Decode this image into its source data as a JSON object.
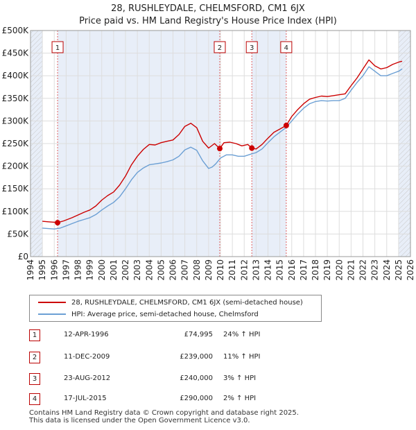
{
  "header": {
    "title_line1": "28, RUSHLEYDALE, CHELMSFORD, CM1 6JX",
    "title_line2": "Price paid vs. HM Land Registry's House Price Index (HPI)"
  },
  "chart_data": {
    "type": "line",
    "title": "28, RUSHLEYDALE, CHELMSFORD, CM1 6JX — Price paid vs. HM Land Registry's House Price Index (HPI)",
    "xlabel": "",
    "ylabel": "",
    "xlim": [
      1994,
      2026
    ],
    "ylim": [
      0,
      500000
    ],
    "x_ticks": [
      1994,
      1995,
      1996,
      1997,
      1998,
      1999,
      2000,
      2001,
      2002,
      2003,
      2004,
      2005,
      2006,
      2007,
      2008,
      2009,
      2010,
      2011,
      2012,
      2013,
      2014,
      2015,
      2016,
      2017,
      2018,
      2019,
      2020,
      2021,
      2022,
      2023,
      2024,
      2025,
      2026
    ],
    "y_ticks": [
      0,
      50000,
      100000,
      150000,
      200000,
      250000,
      300000,
      350000,
      400000,
      450000,
      500000
    ],
    "y_tick_labels": [
      "£0",
      "£50K",
      "£100K",
      "£150K",
      "£200K",
      "£250K",
      "£300K",
      "£350K",
      "£400K",
      "£450K",
      "£500K"
    ],
    "shaded_regions": [
      [
        1994.0,
        1995.0
      ],
      [
        1996.28,
        2009.94
      ],
      [
        2012.64,
        2015.54
      ],
      [
        2025.0,
        2026.0
      ]
    ],
    "hatched_regions": [
      [
        1994.0,
        1995.0
      ],
      [
        2025.0,
        2026.0
      ]
    ],
    "series": [
      {
        "name": "28, RUSHLEYDALE, CHELMSFORD, CM1 6JX (semi-detached house)",
        "color": "#cc0000",
        "x": [
          1995.0,
          1995.5,
          1996.0,
          1996.28,
          1996.8,
          1997.5,
          1998.0,
          1998.5,
          1999.0,
          1999.5,
          2000.0,
          2000.5,
          2001.0,
          2001.5,
          2002.0,
          2002.5,
          2003.0,
          2003.5,
          2004.0,
          2004.5,
          2005.0,
          2005.5,
          2006.0,
          2006.5,
          2007.0,
          2007.5,
          2008.0,
          2008.5,
          2009.0,
          2009.5,
          2009.94,
          2010.3,
          2010.8,
          2011.3,
          2011.8,
          2012.3,
          2012.64,
          2013.0,
          2013.5,
          2014.0,
          2014.5,
          2015.0,
          2015.54,
          2016.0,
          2016.5,
          2017.0,
          2017.5,
          2018.0,
          2018.5,
          2019.0,
          2019.5,
          2020.0,
          2020.5,
          2021.0,
          2021.5,
          2022.0,
          2022.5,
          2023.0,
          2023.5,
          2024.0,
          2024.5,
          2025.0,
          2025.3
        ],
        "y": [
          78000,
          77000,
          76000,
          74995,
          79000,
          86000,
          92000,
          98000,
          103000,
          112000,
          125000,
          135000,
          143000,
          158000,
          178000,
          203000,
          222000,
          237000,
          248000,
          247000,
          252000,
          255000,
          258000,
          270000,
          288000,
          295000,
          285000,
          255000,
          240000,
          250000,
          239000,
          252000,
          253000,
          250000,
          245000,
          248000,
          240000,
          238000,
          248000,
          262000,
          275000,
          282000,
          290000,
          310000,
          325000,
          338000,
          348000,
          352000,
          355000,
          354000,
          356000,
          358000,
          360000,
          378000,
          395000,
          415000,
          435000,
          422000,
          415000,
          418000,
          425000,
          430000,
          432000
        ]
      },
      {
        "name": "HPI: Average price, semi-detached house, Chelmsford",
        "color": "#6b9fd4",
        "x": [
          1995.0,
          1995.5,
          1996.0,
          1996.5,
          1997.0,
          1997.5,
          1998.0,
          1998.5,
          1999.0,
          1999.5,
          2000.0,
          2000.5,
          2001.0,
          2001.5,
          2002.0,
          2002.5,
          2003.0,
          2003.5,
          2004.0,
          2004.5,
          2005.0,
          2005.5,
          2006.0,
          2006.5,
          2007.0,
          2007.5,
          2008.0,
          2008.5,
          2009.0,
          2009.3,
          2009.6,
          2010.0,
          2010.5,
          2011.0,
          2011.5,
          2012.0,
          2012.5,
          2013.0,
          2013.5,
          2014.0,
          2014.5,
          2015.0,
          2015.5,
          2016.0,
          2016.5,
          2017.0,
          2017.5,
          2018.0,
          2018.5,
          2019.0,
          2019.5,
          2020.0,
          2020.5,
          2021.0,
          2021.5,
          2022.0,
          2022.5,
          2023.0,
          2023.5,
          2024.0,
          2024.5,
          2025.0,
          2025.3
        ],
        "y": [
          63000,
          62000,
          61000,
          63000,
          68000,
          73000,
          78000,
          82000,
          86000,
          93000,
          103000,
          112000,
          120000,
          132000,
          150000,
          170000,
          186000,
          196000,
          203000,
          205000,
          207000,
          210000,
          214000,
          222000,
          236000,
          242000,
          235000,
          212000,
          195000,
          198000,
          205000,
          218000,
          225000,
          225000,
          222000,
          222000,
          226000,
          230000,
          238000,
          252000,
          265000,
          275000,
          285000,
          300000,
          315000,
          328000,
          338000,
          343000,
          345000,
          344000,
          345000,
          345000,
          350000,
          368000,
          385000,
          400000,
          420000,
          410000,
          400000,
          400000,
          405000,
          410000,
          415000
        ]
      }
    ],
    "markers": [
      {
        "label": "1",
        "x": 1996.28,
        "y": 74995
      },
      {
        "label": "2",
        "x": 2009.94,
        "y": 239000
      },
      {
        "label": "3",
        "x": 2012.64,
        "y": 240000
      },
      {
        "label": "4",
        "x": 2015.54,
        "y": 290000
      }
    ]
  },
  "legend": {
    "items": [
      {
        "label": "28, RUSHLEYDALE, CHELMSFORD, CM1 6JX (semi-detached house)",
        "color": "#cc0000"
      },
      {
        "label": "HPI: Average price, semi-detached house, Chelmsford",
        "color": "#6b9fd4"
      }
    ]
  },
  "sales": [
    {
      "num": "1",
      "date": "12-APR-1996",
      "price": "£74,995",
      "hpi": "24% ↑ HPI"
    },
    {
      "num": "2",
      "date": "11-DEC-2009",
      "price": "£239,000",
      "hpi": "11% ↑ HPI"
    },
    {
      "num": "3",
      "date": "23-AUG-2012",
      "price": "£240,000",
      "hpi": "3% ↑ HPI"
    },
    {
      "num": "4",
      "date": "17-JUL-2015",
      "price": "£290,000",
      "hpi": "2% ↑ HPI"
    }
  ],
  "footer": {
    "line1": "Contains HM Land Registry data © Crown copyright and database right 2025.",
    "line2": "This data is licensed under the Open Government Licence v3.0."
  }
}
